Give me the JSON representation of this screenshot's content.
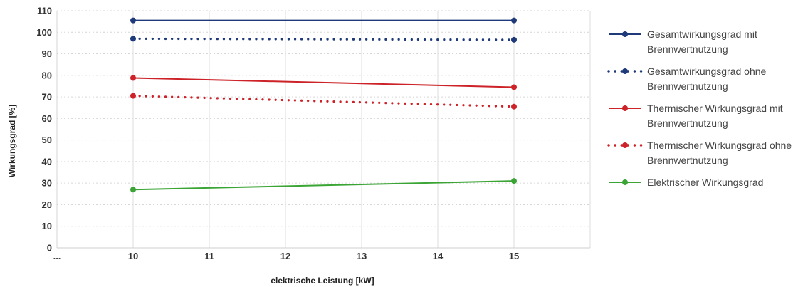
{
  "chart_data": {
    "type": "line",
    "xlabel": "elektrische Leistung [kW]",
    "ylabel": "Wirkungsgrad [%]",
    "x_tick_labels": [
      "...",
      "10",
      "11",
      "12",
      "13",
      "14",
      "15"
    ],
    "x_ticks": [
      9,
      10,
      11,
      12,
      13,
      14,
      15
    ],
    "xlim": [
      9,
      16
    ],
    "ylim": [
      0,
      110
    ],
    "y_ticks": [
      0,
      10,
      20,
      30,
      40,
      50,
      60,
      70,
      80,
      90,
      100,
      110
    ],
    "grid": "horizontal dashed, vertical solid",
    "legend_position": "right",
    "series": [
      {
        "name": "Gesamtwirkungsgrad mit Brennwertnutzung",
        "color": "#1f3a7a",
        "dash": "solid",
        "x": [
          10,
          15
        ],
        "y": [
          105.5,
          105.5
        ]
      },
      {
        "name": "Gesamtwirkungsgrad ohne Brennwertnutzung",
        "color": "#1f3a7a",
        "dash": "dotted",
        "x": [
          10,
          15
        ],
        "y": [
          97,
          96.5
        ]
      },
      {
        "name": "Thermischer Wirkungsgrad mit Brennwertnutzung",
        "color": "#cc2228",
        "dash": "solid",
        "x": [
          10,
          15
        ],
        "y": [
          78.8,
          74.5
        ]
      },
      {
        "name": "Thermischer Wirkungsgrad ohne Brennwertnutzung",
        "color": "#cc2228",
        "dash": "dotted",
        "x": [
          10,
          15
        ],
        "y": [
          70.5,
          65.5
        ]
      },
      {
        "name": "Elektrischer Wirkungsgrad",
        "color": "#3aa535",
        "dash": "solid",
        "x": [
          10,
          15
        ],
        "y": [
          27,
          31
        ]
      }
    ]
  }
}
